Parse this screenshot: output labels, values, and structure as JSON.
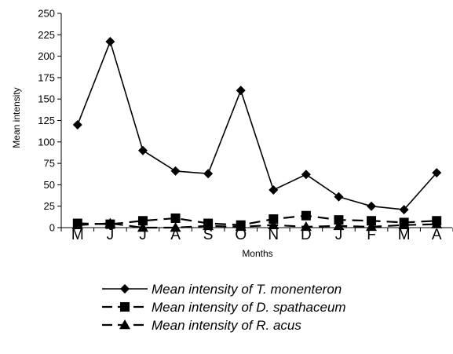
{
  "chart_data": {
    "type": "line",
    "title": "",
    "xlabel": "Months",
    "ylabel": "Mean intensity",
    "categories": [
      "M",
      "J",
      "J",
      "A",
      "S",
      "O",
      "N",
      "D",
      "J",
      "F",
      "M",
      "A"
    ],
    "ylim": [
      0,
      250
    ],
    "yticks": [
      "0",
      "25",
      "50",
      "75",
      "100",
      "125",
      "150",
      "175",
      "200",
      "225",
      "250"
    ],
    "grid": false,
    "legend_position": "bottom",
    "series": [
      {
        "name": "Mean intensity of T. monenteron",
        "marker": "diamond",
        "line": "solid",
        "color": "#000000",
        "values": [
          120,
          217,
          90,
          66,
          63,
          160,
          44,
          62,
          36,
          25,
          21,
          64
        ]
      },
      {
        "name": "Mean intensity of D. spathaceum",
        "marker": "square",
        "line": "dashed",
        "color": "#000000",
        "values": [
          5,
          4,
          8,
          11,
          5,
          3,
          10,
          14,
          9,
          8,
          6,
          8
        ]
      },
      {
        "name": "Mean intensity  of R. acus",
        "marker": "triangle",
        "line": "dashed",
        "color": "#000000",
        "values": [
          3,
          5,
          0,
          0,
          2,
          1,
          3,
          1,
          2,
          1,
          3,
          4
        ]
      }
    ]
  }
}
